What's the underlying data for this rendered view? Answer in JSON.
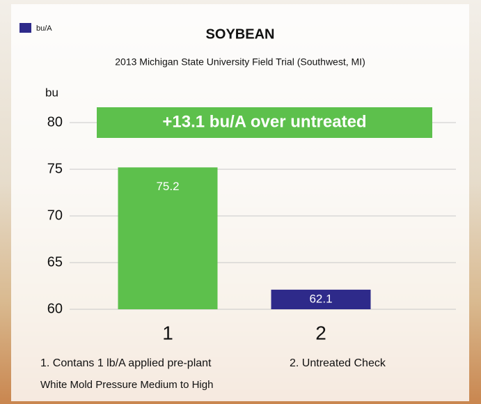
{
  "chart_data": {
    "type": "bar",
    "title": "SOYBEAN",
    "subtitle": "2013 Michigan State University Field Trial (Southwest, MI)",
    "y_label": "bu",
    "categories": [
      "1",
      "2"
    ],
    "series": [
      {
        "name": "bu/A",
        "color": "#2e2a8a",
        "values": [
          75.2,
          62.1
        ]
      }
    ],
    "bar_colors": [
      "#5dc04c",
      "#2e2a8a"
    ],
    "ylim": [
      60,
      80
    ],
    "yticks": [
      60,
      65,
      70,
      75,
      80
    ],
    "grid": true,
    "annotation": "+13.1 bu/A over untreated",
    "annotation_color": "#5dc04c",
    "footnotes": [
      "1. Contans 1 lb/A applied pre-plant",
      "2. Untreated Check",
      "White Mold Pressure Medium to High"
    ]
  }
}
